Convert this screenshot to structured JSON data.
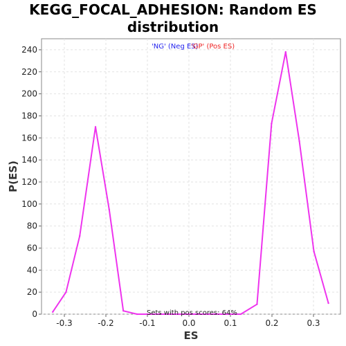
{
  "chart_data": {
    "type": "line",
    "title_line1": "KEGG_FOCAL_ADHESION: Random ES",
    "title_line2": "distribution",
    "xlabel": "ES",
    "ylabel": "P(ES)",
    "xlim": [
      -0.355,
      0.365
    ],
    "ylim": [
      0,
      250
    ],
    "xticks": [
      -0.3,
      -0.2,
      -0.1,
      0.0,
      0.1,
      0.2,
      0.3
    ],
    "xtick_labels": [
      "-0.3",
      "-0.2",
      "-0.1",
      "0.0",
      "0.1",
      "0.2",
      "0.3"
    ],
    "yticks": [
      0,
      20,
      40,
      60,
      80,
      100,
      120,
      140,
      160,
      180,
      200,
      220,
      240
    ],
    "grid": true,
    "legend": {
      "neg": "'NG' (Neg ES)",
      "pos": "'GP' (Pos ES)"
    },
    "annotation": "Sets with pos scores: 64%",
    "series": [
      {
        "color": "#ee33ee",
        "x": [
          -0.328,
          -0.296,
          -0.263,
          -0.225,
          -0.192,
          -0.158,
          -0.125,
          0.125,
          0.164,
          0.199,
          0.233,
          0.266,
          0.301,
          0.336
        ],
        "y": [
          2,
          20,
          71,
          170,
          95,
          3,
          0,
          0,
          9,
          173,
          238,
          157,
          57,
          10
        ]
      }
    ]
  }
}
